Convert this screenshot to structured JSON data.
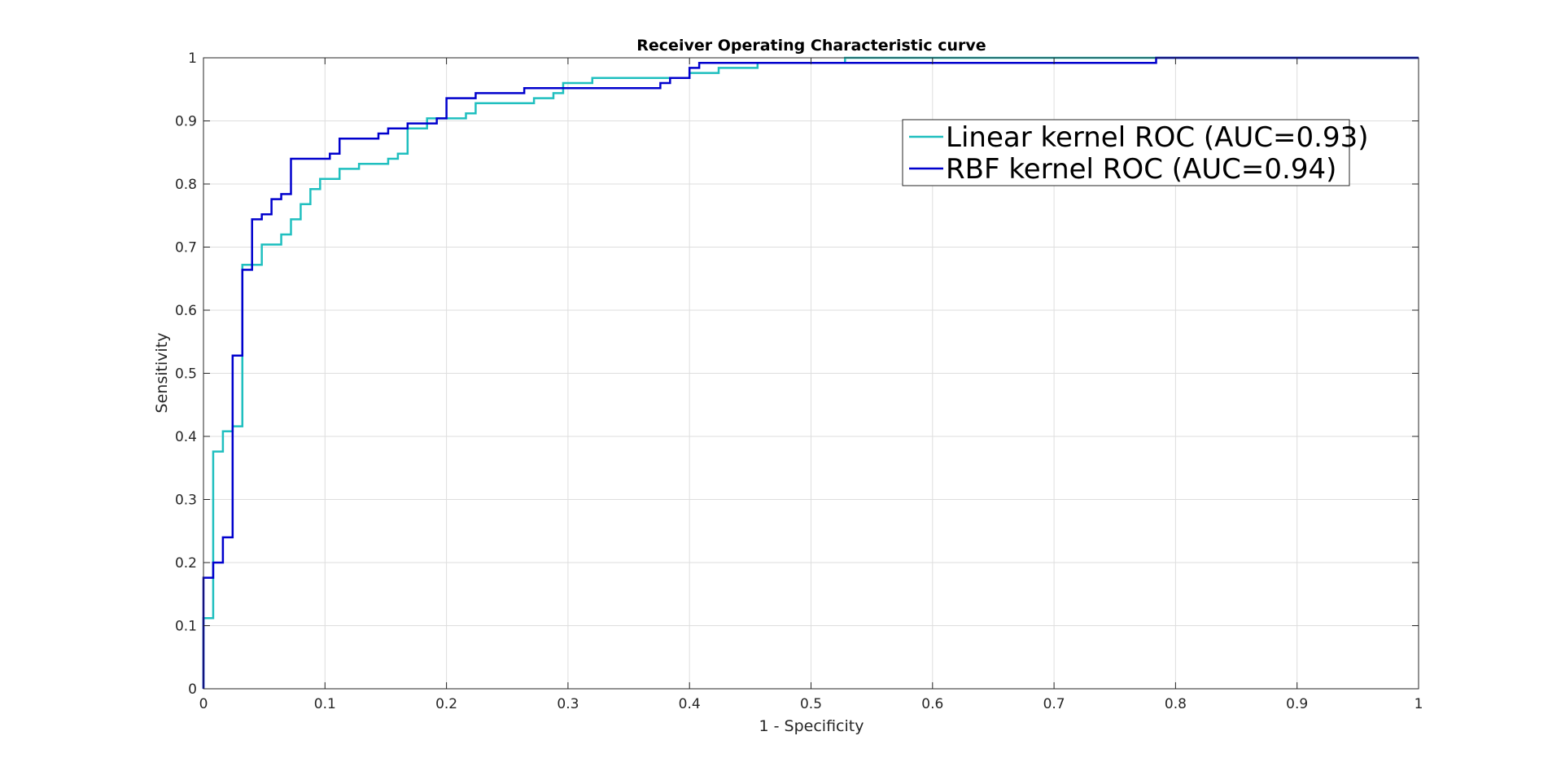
{
  "chart_data": {
    "type": "line",
    "title": "Receiver Operating Characteristic curve",
    "xlabel": "1 - Specificity",
    "ylabel": "Sensitivity",
    "xlim": [
      0,
      1
    ],
    "ylim": [
      0,
      1
    ],
    "xticks": [
      "0",
      "0.1",
      "0.2",
      "0.3",
      "0.4",
      "0.5",
      "0.6",
      "0.7",
      "0.8",
      "0.9",
      "1"
    ],
    "yticks": [
      "0",
      "0.1",
      "0.2",
      "0.3",
      "0.4",
      "0.5",
      "0.6",
      "0.7",
      "0.8",
      "0.9",
      "1"
    ],
    "grid": true,
    "legend_position": "top-right",
    "series": [
      {
        "name": "Linear kernel ROC (AUC=0.93)",
        "color": "#1fbfbf",
        "step": true,
        "x": [
          0,
          0,
          0.008,
          0.008,
          0.016,
          0.016,
          0.024,
          0.024,
          0.032,
          0.032,
          0.04,
          0.04,
          0.048,
          0.048,
          0.064,
          0.064,
          0.072,
          0.072,
          0.08,
          0.08,
          0.088,
          0.088,
          0.096,
          0.096,
          0.112,
          0.112,
          0.128,
          0.128,
          0.152,
          0.152,
          0.16,
          0.16,
          0.168,
          0.168,
          0.184,
          0.184,
          0.216,
          0.216,
          0.224,
          0.224,
          0.272,
          0.272,
          0.288,
          0.288,
          0.296,
          0.296,
          0.32,
          0.32,
          0.4,
          0.4,
          0.424,
          0.424,
          0.456,
          0.456,
          0.528,
          0.528,
          1.0
        ],
        "y": [
          0,
          0.112,
          0.112,
          0.376,
          0.376,
          0.408,
          0.408,
          0.416,
          0.416,
          0.672,
          0.672,
          0.672,
          0.672,
          0.704,
          0.704,
          0.72,
          0.72,
          0.744,
          0.744,
          0.768,
          0.768,
          0.792,
          0.792,
          0.808,
          0.808,
          0.824,
          0.824,
          0.832,
          0.832,
          0.84,
          0.84,
          0.848,
          0.848,
          0.888,
          0.888,
          0.904,
          0.904,
          0.912,
          0.912,
          0.928,
          0.928,
          0.936,
          0.936,
          0.944,
          0.944,
          0.96,
          0.96,
          0.968,
          0.968,
          0.976,
          0.976,
          0.984,
          0.984,
          0.992,
          0.992,
          1.0,
          1.0
        ]
      },
      {
        "name": "RBF kernel ROC (AUC=0.94)",
        "color": "#0000cd",
        "step": true,
        "x": [
          0,
          0,
          0.008,
          0.008,
          0.016,
          0.016,
          0.024,
          0.024,
          0.032,
          0.032,
          0.04,
          0.04,
          0.048,
          0.048,
          0.056,
          0.056,
          0.064,
          0.064,
          0.072,
          0.072,
          0.104,
          0.104,
          0.112,
          0.112,
          0.144,
          0.144,
          0.152,
          0.152,
          0.168,
          0.168,
          0.192,
          0.192,
          0.2,
          0.2,
          0.224,
          0.224,
          0.264,
          0.264,
          0.296,
          0.296,
          0.376,
          0.376,
          0.384,
          0.384,
          0.4,
          0.4,
          0.408,
          0.408,
          0.784,
          0.784,
          1.0
        ],
        "y": [
          0,
          0.176,
          0.176,
          0.2,
          0.2,
          0.24,
          0.24,
          0.528,
          0.528,
          0.664,
          0.664,
          0.744,
          0.744,
          0.752,
          0.752,
          0.776,
          0.776,
          0.784,
          0.784,
          0.84,
          0.84,
          0.848,
          0.848,
          0.872,
          0.872,
          0.88,
          0.88,
          0.888,
          0.888,
          0.896,
          0.896,
          0.904,
          0.904,
          0.936,
          0.936,
          0.944,
          0.944,
          0.952,
          0.952,
          0.952,
          0.952,
          0.96,
          0.96,
          0.968,
          0.968,
          0.984,
          0.984,
          0.992,
          0.992,
          1.0,
          1.0
        ]
      }
    ]
  }
}
